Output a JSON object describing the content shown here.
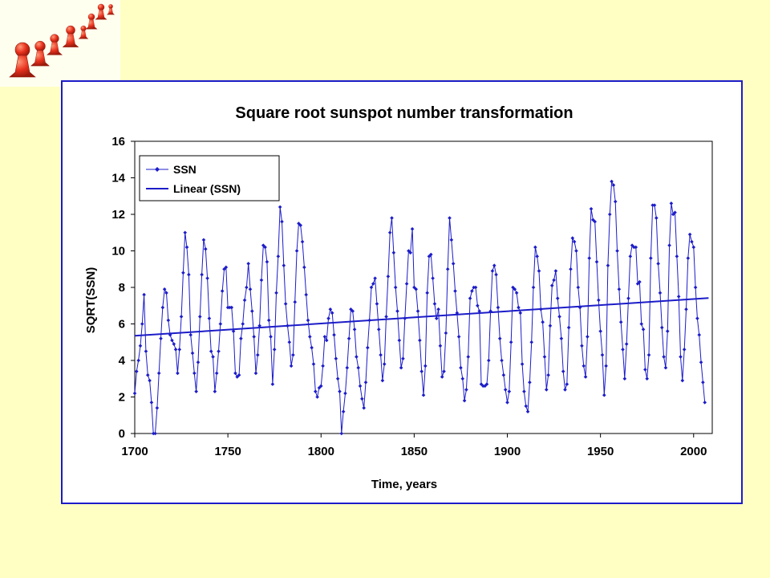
{
  "decoration": {
    "icon": "red-pawns-icon",
    "color": "#e8321e"
  },
  "chart_data": {
    "type": "line",
    "title": "Square root sunspot number transformation",
    "xlabel": "Time, years",
    "ylabel": "SQRT(SSN)",
    "xlim": [
      1700,
      2010
    ],
    "ylim": [
      0,
      16
    ],
    "xticks": [
      "1700",
      "1750",
      "1800",
      "1850",
      "1900",
      "1950",
      "2000"
    ],
    "yticks": [
      "0",
      "2",
      "4",
      "6",
      "8",
      "10",
      "12",
      "14",
      "16"
    ],
    "grid": false,
    "legend": {
      "placement": "top-left",
      "entries": [
        "SSN",
        "Linear (SSN)"
      ]
    },
    "colors": {
      "series": "#1c1cc8",
      "trend": "#1c1cc8",
      "frame": "#1c1cc8"
    },
    "series": [
      {
        "name": "SSN",
        "marker": "diamond",
        "x_start": 1700,
        "x_step": 1,
        "values": [
          2.2,
          3.4,
          4.0,
          4.8,
          6.0,
          7.6,
          4.5,
          3.2,
          2.9,
          1.7,
          0.0,
          0.0,
          1.4,
          3.3,
          5.2,
          6.9,
          7.9,
          7.7,
          6.2,
          5.4,
          5.1,
          4.9,
          4.6,
          3.3,
          4.6,
          6.4,
          8.8,
          11.0,
          10.2,
          8.7,
          5.4,
          4.4,
          3.3,
          2.3,
          3.9,
          6.4,
          8.7,
          10.6,
          10.1,
          8.5,
          6.3,
          4.5,
          4.2,
          2.3,
          3.3,
          4.5,
          6.0,
          7.8,
          9.0,
          9.1,
          6.9,
          6.9,
          6.9,
          5.6,
          3.3,
          3.1,
          3.2,
          5.2,
          6.0,
          7.3,
          8.0,
          9.3,
          7.9,
          6.7,
          5.3,
          3.3,
          4.3,
          5.9,
          8.4,
          10.3,
          10.2,
          9.4,
          6.2,
          5.3,
          2.7,
          4.6,
          7.7,
          9.7,
          12.4,
          11.6,
          9.2,
          7.1,
          5.9,
          5.0,
          3.7,
          4.3,
          7.2,
          10.0,
          11.5,
          11.4,
          10.5,
          9.1,
          7.6,
          6.2,
          5.3,
          4.7,
          3.8,
          2.3,
          2.0,
          2.5,
          2.6,
          3.7,
          5.3,
          5.1,
          6.3,
          6.8,
          6.6,
          5.4,
          4.1,
          3.0,
          2.3,
          0.0,
          1.2,
          2.2,
          3.6,
          5.2,
          6.8,
          6.7,
          5.7,
          4.2,
          3.6,
          2.6,
          1.9,
          1.4,
          2.8,
          4.7,
          6.2,
          8.0,
          8.2,
          8.5,
          7.1,
          5.7,
          4.3,
          2.9,
          3.8,
          6.4,
          8.6,
          11.0,
          11.8,
          9.9,
          8.0,
          6.7,
          5.1,
          3.6,
          4.1,
          6.3,
          8.2,
          10.0,
          9.9,
          11.2,
          8.0,
          7.9,
          6.7,
          5.1,
          3.4,
          2.1,
          3.7,
          7.7,
          9.7,
          9.8,
          8.5,
          7.1,
          6.3,
          6.8,
          4.8,
          3.1,
          3.4,
          5.5,
          9.0,
          11.8,
          10.6,
          9.3,
          7.8,
          6.6,
          5.3,
          3.6,
          3.0,
          1.8,
          2.4,
          4.2,
          7.4,
          7.8,
          8.0,
          8.0,
          7.0,
          6.7,
          2.7,
          2.6,
          2.6,
          2.7,
          4.0,
          6.7,
          8.9,
          9.2,
          8.7,
          6.9,
          5.2,
          4.0,
          3.2,
          2.4,
          1.7,
          2.3,
          5.0,
          8.0,
          7.9,
          7.7,
          6.9,
          6.6,
          3.8,
          2.3,
          1.5,
          1.2,
          2.8,
          5.0,
          8.0,
          10.2,
          9.7,
          8.9,
          6.8,
          6.1,
          4.2,
          2.4,
          3.2,
          5.9,
          8.1,
          8.4,
          8.9,
          7.4,
          6.4,
          5.2,
          3.4,
          2.4,
          2.7,
          5.8,
          9.0,
          10.7,
          10.5,
          10.0,
          8.0,
          6.9,
          4.8,
          3.7,
          3.1,
          5.3,
          9.6,
          12.3,
          11.7,
          11.6,
          9.4,
          7.3,
          5.6,
          4.3,
          2.1,
          3.7,
          9.2,
          12.0,
          13.8,
          13.6,
          12.7,
          10.0,
          7.9,
          6.1,
          4.6,
          3.0,
          4.9,
          7.4,
          9.7,
          10.3,
          10.2,
          10.2,
          8.2,
          8.3,
          6.0,
          5.7,
          3.5,
          3.0,
          4.3,
          9.6,
          12.5,
          12.5,
          11.8,
          9.3,
          7.7,
          5.8,
          4.2,
          3.6,
          5.6,
          10.3,
          12.6,
          12.0,
          12.1,
          9.7,
          7.5,
          4.2,
          2.9,
          4.6,
          6.8,
          9.6,
          10.9,
          10.5,
          10.2,
          8.0,
          6.3,
          5.4,
          3.9,
          2.8,
          1.7
        ]
      },
      {
        "name": "Linear (SSN)",
        "x": [
          1700,
          2008
        ],
        "values": [
          5.35,
          7.42
        ]
      }
    ]
  }
}
